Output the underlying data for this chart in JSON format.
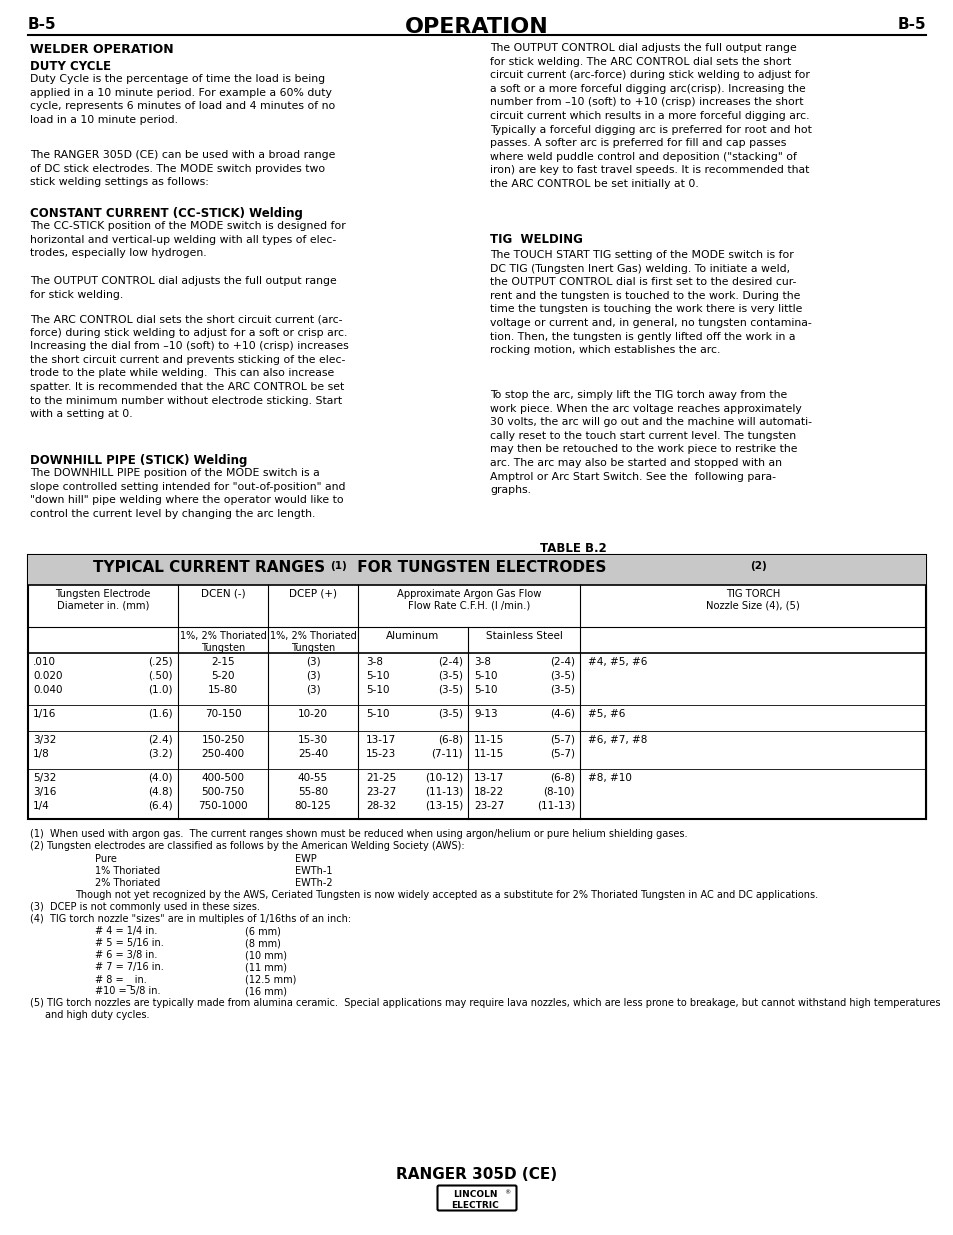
{
  "page_header_left": "B-5",
  "page_header_center": "OPERATION",
  "page_header_right": "B-5",
  "footer_text": "RANGER 305D (CE)",
  "bg_color": "#ffffff"
}
